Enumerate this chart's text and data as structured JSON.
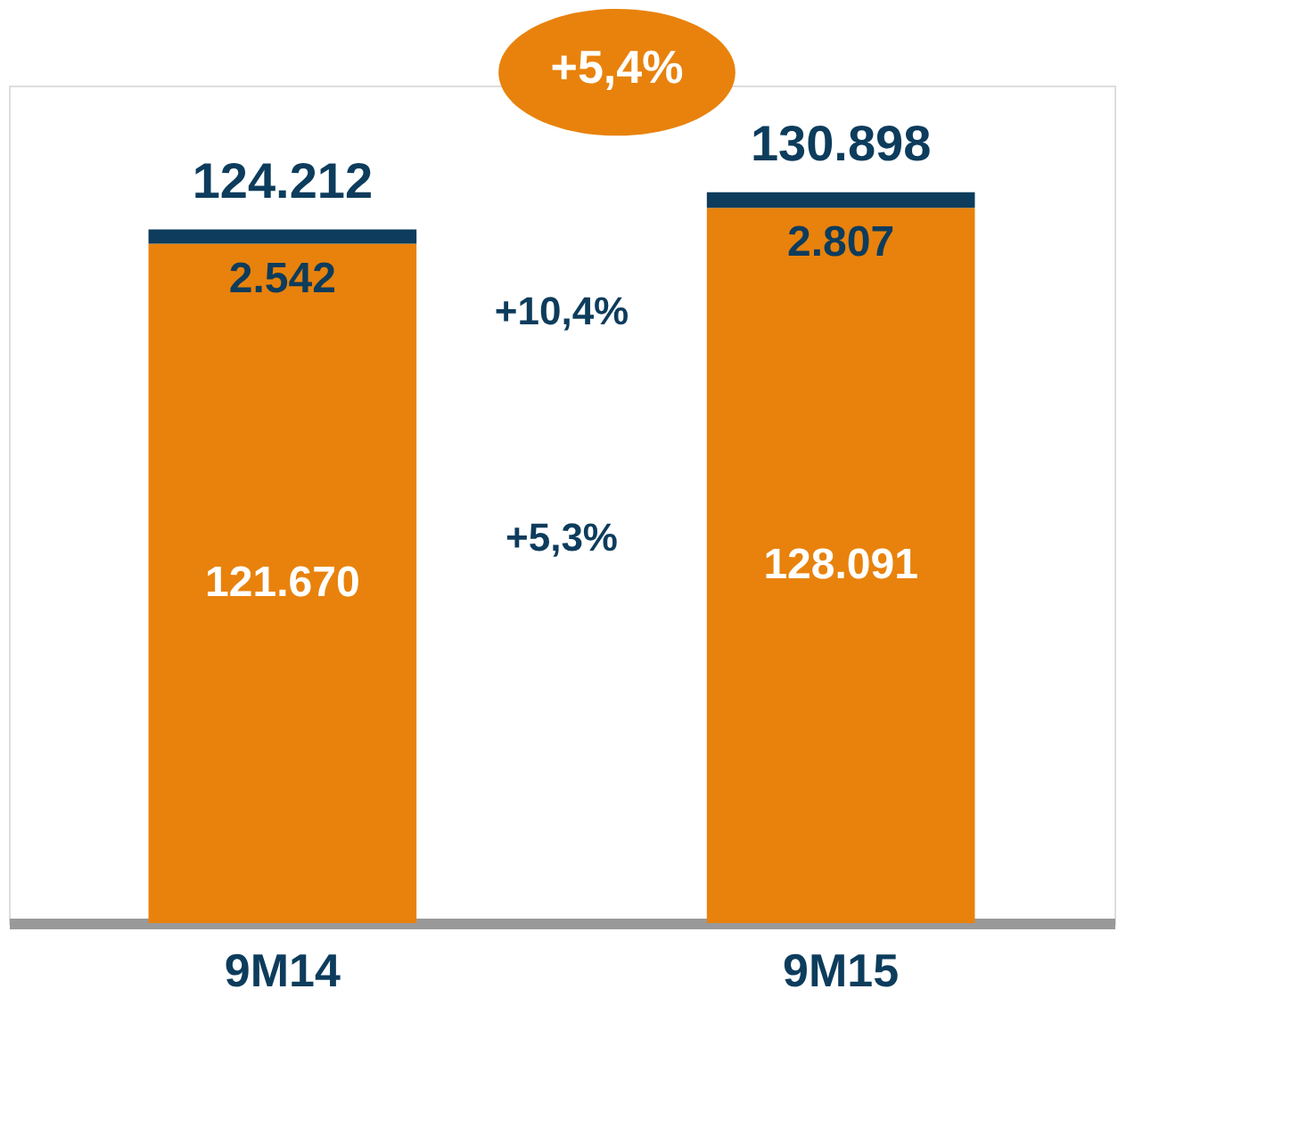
{
  "chart_data": {
    "type": "bar",
    "stacked": true,
    "categories": [
      "9M14",
      "9M15"
    ],
    "ylim": [
      0,
      150000
    ],
    "series": [
      {
        "color": "#e8820c",
        "values": [
          121670,
          128091
        ],
        "value_labels": [
          "121.670",
          "128.091"
        ]
      },
      {
        "color": "#0d3c5c",
        "values": [
          2542,
          2807
        ],
        "value_labels": [
          "2.542",
          "2.807"
        ]
      }
    ],
    "totals": [
      "124.212",
      "130.898"
    ],
    "annotations": [
      "+5,4%",
      "+10,4%",
      "+5,3%"
    ],
    "grid": false
  }
}
